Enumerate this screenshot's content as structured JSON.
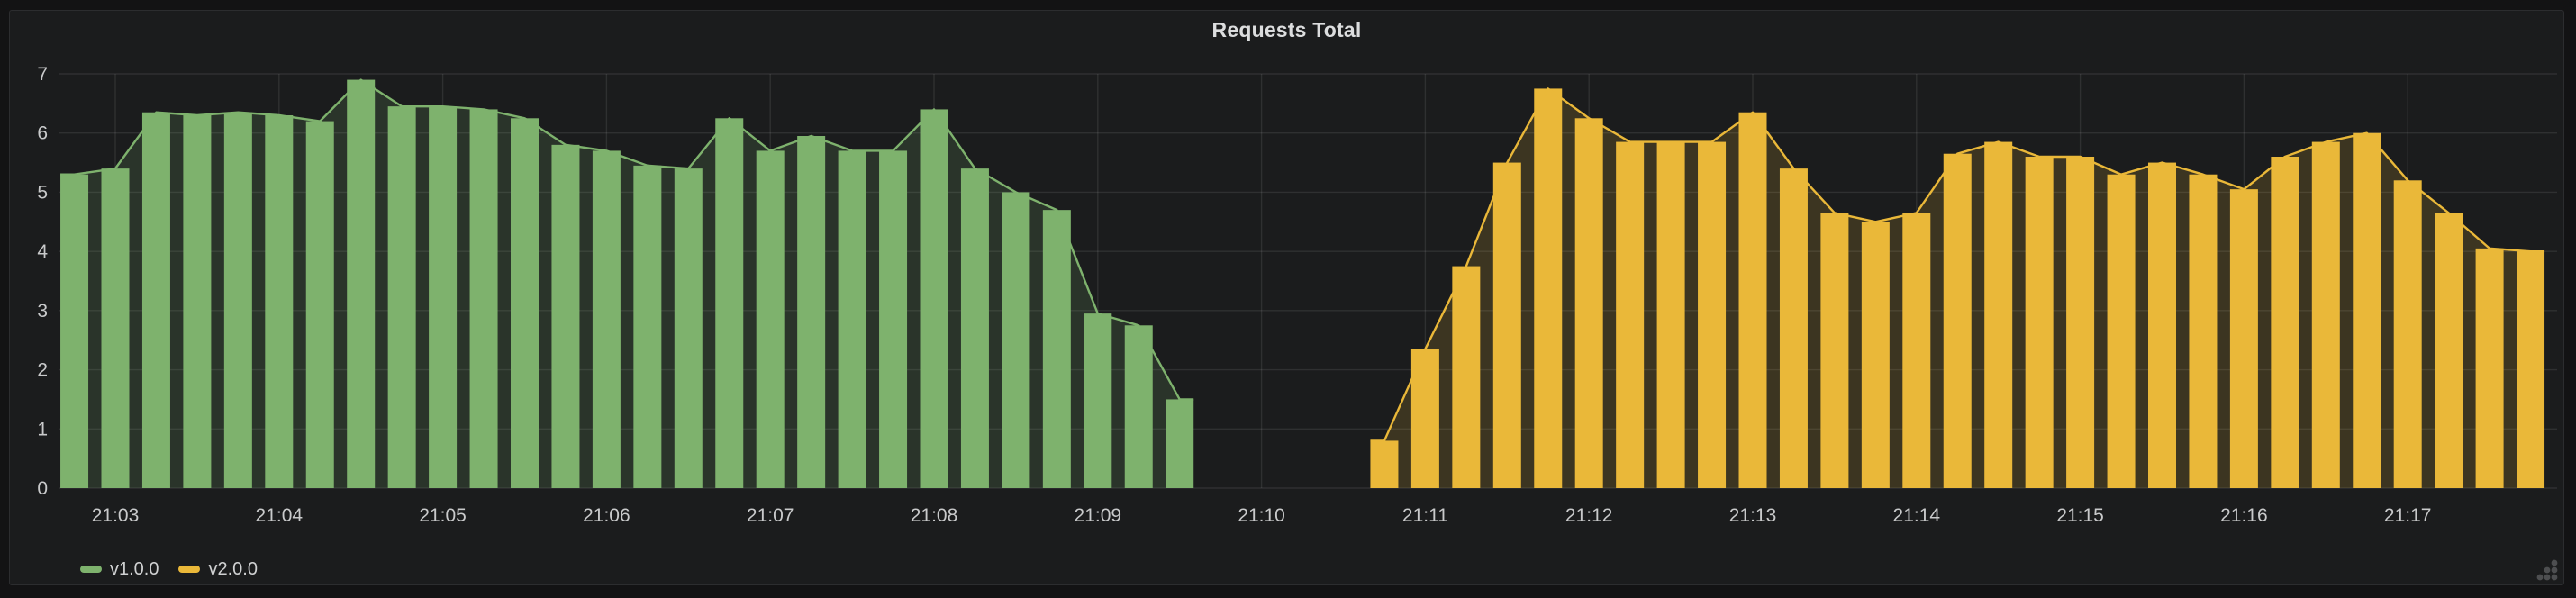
{
  "panel": {
    "title": "Requests Total"
  },
  "colors": {
    "background_outer": "#131314",
    "background_panel": "#1b1c1d",
    "gridline": "rgba(255,255,255,0.09)",
    "axis_text": "#c9cacb",
    "title_text": "#dcddde",
    "series_green": "#7EB26D",
    "series_yellow": "#EAB839"
  },
  "chart_data": {
    "type": "bar",
    "title": "Requests Total",
    "xlabel": "",
    "ylabel": "",
    "ylim": [
      0,
      7
    ],
    "y_tick_labels": [
      "0",
      "1",
      "2",
      "3",
      "4",
      "5",
      "6",
      "7"
    ],
    "x_tick_labels": [
      "21:03",
      "21:04",
      "21:05",
      "21:06",
      "21:07",
      "21:08",
      "21:09",
      "21:10",
      "21:11",
      "21:12",
      "21:13",
      "21:14",
      "21:15",
      "21:16",
      "21:17"
    ],
    "x_tick_interval": "1 minute",
    "interval_sec": 15,
    "grid": true,
    "legend_position": "bottom-left",
    "style": "bars with connecting line and translucent area fill",
    "series": [
      {
        "name": "v1.0.0",
        "color": "#7EB26D",
        "start_time": "21:02:45",
        "start_offset_sec": -15,
        "values": [
          5.3,
          5.4,
          6.35,
          6.3,
          6.35,
          6.3,
          6.2,
          6.9,
          6.45,
          6.45,
          6.4,
          6.25,
          5.8,
          5.7,
          5.45,
          5.4,
          6.25,
          5.7,
          5.95,
          5.7,
          5.7,
          6.4,
          5.4,
          5.0,
          4.7,
          2.95,
          2.75,
          1.5
        ]
      },
      {
        "name": "v2.0.0",
        "color": "#EAB839",
        "start_time": "21:10:45",
        "start_offset_sec": 465,
        "values": [
          0.8,
          2.35,
          3.75,
          5.5,
          6.75,
          6.25,
          5.85,
          5.85,
          5.85,
          6.35,
          5.4,
          4.65,
          4.5,
          4.65,
          5.65,
          5.85,
          5.6,
          5.6,
          5.3,
          5.5,
          5.3,
          5.05,
          5.6,
          5.85,
          6.0,
          5.2,
          4.65,
          4.05,
          4.0
        ]
      }
    ]
  }
}
